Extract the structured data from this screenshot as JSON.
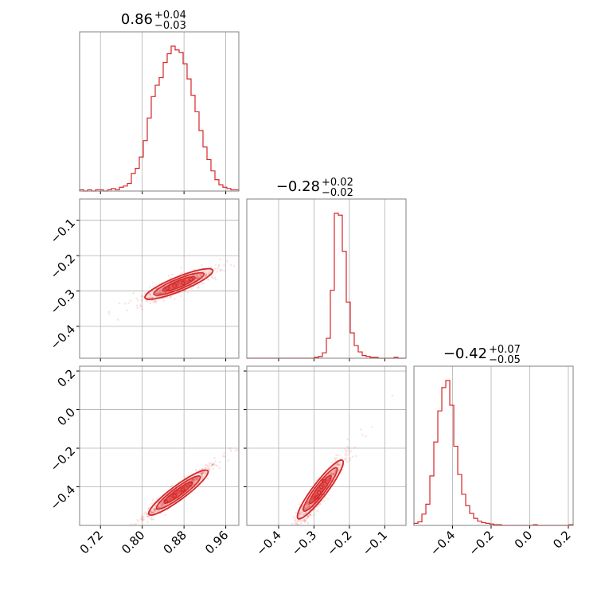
{
  "colors": {
    "series": "#d62728",
    "grid": "#b0b0b0",
    "frame": "#808080"
  },
  "chart_data": {
    "type": "corner",
    "parameters": [
      {
        "median": "0.86",
        "plus": "+0.04",
        "minus": "−0.03"
      },
      {
        "median": "−0.28",
        "plus": "+0.02",
        "minus": "−0.02"
      },
      {
        "median": "−0.42",
        "plus": "+0.07",
        "minus": "−0.05"
      }
    ],
    "axes": [
      {
        "range": [
          0.68,
          0.985
        ],
        "ticks": [
          0.72,
          0.8,
          0.88,
          0.96
        ],
        "tick_labels": [
          "0.72",
          "0.80",
          "0.88",
          "0.96"
        ]
      },
      {
        "range": [
          -0.49,
          -0.04
        ],
        "ticks": [
          -0.4,
          -0.3,
          -0.2,
          -0.1
        ],
        "tick_labels": [
          "−0.4",
          "−0.3",
          "−0.2",
          "−0.1"
        ]
      },
      {
        "range": [
          -0.6,
          0.225
        ],
        "ticks": [
          -0.4,
          -0.2,
          0.0,
          0.2
        ],
        "tick_labels": [
          "−0.4",
          "−0.2",
          "0.0",
          "0.2"
        ]
      }
    ],
    "grid": true,
    "histograms": [
      {
        "param": 0,
        "counts": [
          1,
          0,
          1,
          0,
          1,
          1,
          0,
          1,
          2,
          1,
          3,
          4,
          6,
          14,
          18,
          27,
          40,
          58,
          75,
          84,
          90,
          102,
          109,
          115,
          112,
          110,
          101,
          89,
          76,
          63,
          48,
          35,
          25,
          16,
          9,
          5,
          3,
          2,
          1,
          1
        ]
      },
      {
        "param": 1,
        "counts": [
          0,
          0,
          0,
          0,
          0,
          0,
          0,
          0,
          0,
          0,
          0,
          0,
          0,
          0,
          0,
          0,
          0,
          1,
          2,
          6,
          22,
          75,
          160,
          158,
          118,
          62,
          28,
          14,
          7,
          3,
          2,
          1,
          1,
          0,
          0,
          0,
          0,
          1,
          0,
          0
        ]
      },
      {
        "param": 2,
        "counts": [
          3,
          5,
          16,
          30,
          70,
          118,
          162,
          195,
          205,
          170,
          112,
          72,
          44,
          28,
          17,
          10,
          6,
          4,
          3,
          2,
          1,
          1,
          0,
          0,
          0,
          0,
          0,
          0,
          0,
          0,
          1,
          0,
          0,
          0,
          0,
          0,
          0,
          0,
          0,
          1
        ]
      }
    ],
    "scatter_pairs": [
      {
        "x": 0,
        "y": 1,
        "center": [
          0.865,
          -0.285
        ],
        "slope": 0.6,
        "thickness": 0.012
      },
      {
        "x": 0,
        "y": 2,
        "center": [
          0.868,
          -0.43
        ],
        "slope": 2.0,
        "thickness": 0.018
      },
      {
        "x": 1,
        "y": 2,
        "center": [
          -0.285,
          -0.43
        ],
        "slope": 2.4,
        "thickness": 0.03
      }
    ],
    "contours": [
      {
        "x": 0,
        "y": 1,
        "centers": [
          [
            0.848,
            -0.292
          ],
          [
            0.862,
            -0.285
          ],
          [
            0.878,
            -0.277
          ],
          [
            0.893,
            -0.267
          ]
        ]
      },
      {
        "x": 0,
        "y": 2,
        "centers": [
          [
            0.845,
            -0.475
          ],
          [
            0.862,
            -0.445
          ],
          [
            0.878,
            -0.415
          ],
          [
            0.892,
            -0.385
          ]
        ]
      },
      {
        "x": 1,
        "y": 2,
        "centers": [
          [
            -0.292,
            -0.455
          ],
          [
            -0.286,
            -0.43
          ],
          [
            -0.279,
            -0.4
          ],
          [
            -0.272,
            -0.37
          ]
        ]
      }
    ]
  }
}
